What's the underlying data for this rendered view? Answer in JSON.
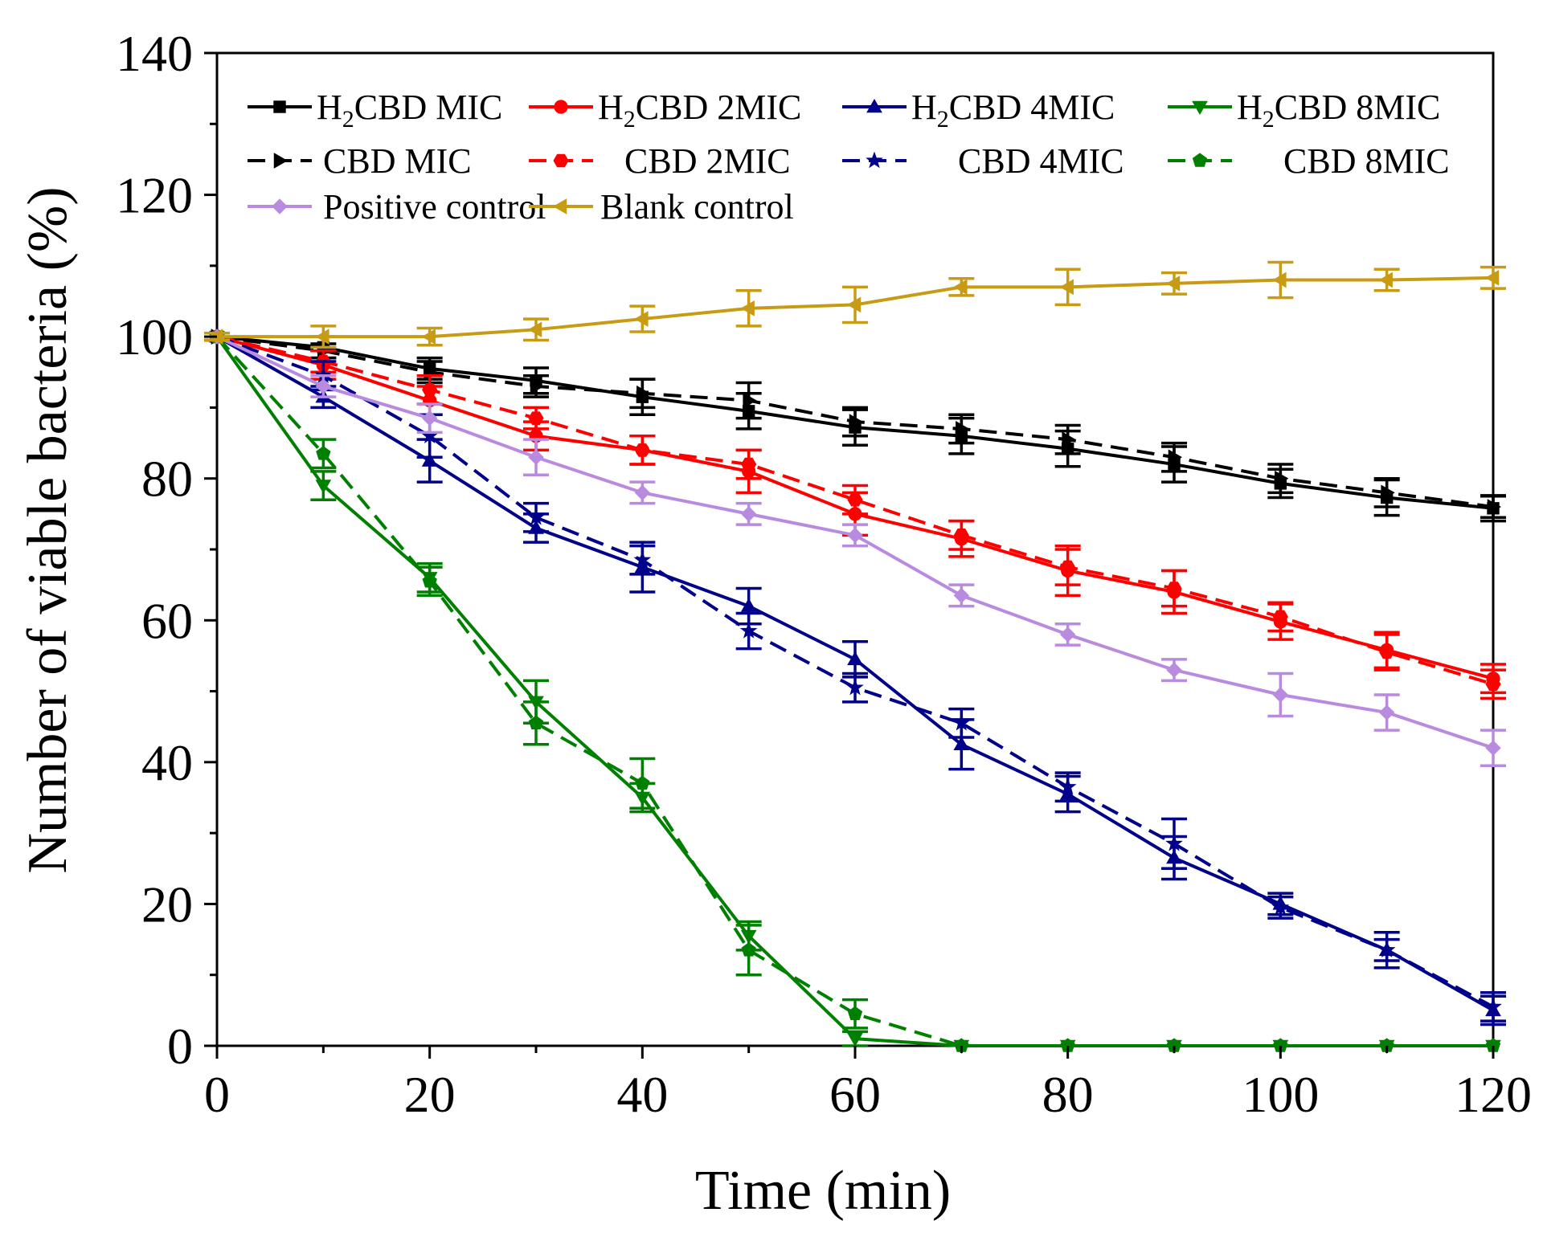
{
  "chart_data": {
    "type": "line",
    "xlabel": "Time (min)",
    "ylabel": "Number of viable bacteria (%)",
    "xlim": [
      0,
      120
    ],
    "ylim": [
      0,
      140
    ],
    "xticks": [
      0,
      20,
      40,
      60,
      80,
      100,
      120
    ],
    "yticks": [
      0,
      20,
      40,
      60,
      80,
      100,
      120,
      140
    ],
    "grid": false,
    "legend_position": "top",
    "x": [
      0,
      10,
      20,
      30,
      40,
      50,
      60,
      70,
      80,
      90,
      100,
      110,
      120
    ],
    "series": [
      {
        "name": "H2CBD MIC",
        "label_prefix": "H",
        "label_sub": "2",
        "label_suffix": "CBD MIC",
        "color": "#000000",
        "dash": "solid",
        "marker": "square",
        "values": [
          100,
          98.5,
          95.5,
          93.8,
          91.5,
          89.5,
          87.2,
          86.0,
          84.2,
          82.0,
          79.3,
          77.3,
          75.8
        ],
        "errors": [
          0.5,
          1.5,
          1.5,
          1.8,
          2.5,
          2.5,
          2.5,
          2.5,
          2.5,
          2.5,
          2.0,
          2.5,
          1.8
        ]
      },
      {
        "name": "H2CBD 2MIC",
        "label_prefix": "H",
        "label_sub": "2",
        "label_suffix": "CBD 2MIC",
        "color": "#ff0000",
        "dash": "solid",
        "marker": "circle",
        "values": [
          100,
          96.0,
          91.0,
          86.0,
          84.0,
          81.0,
          75.0,
          71.5,
          67.0,
          64.0,
          59.8,
          55.8,
          51.8
        ],
        "errors": [
          0.5,
          2.0,
          2.0,
          2.0,
          2.0,
          3.0,
          3.0,
          2.5,
          3.5,
          3.0,
          2.5,
          2.5,
          2.0
        ]
      },
      {
        "name": "H2CBD 4MIC",
        "label_prefix": "H",
        "label_sub": "2",
        "label_suffix": "CBD 4MIC",
        "color": "#00008b",
        "dash": "solid",
        "marker": "triangle-up",
        "values": [
          100,
          91.5,
          82.5,
          73.0,
          67.5,
          62.0,
          54.5,
          42.5,
          35.5,
          26.5,
          20.0,
          13.5,
          5.0
        ],
        "errors": [
          0.5,
          1.5,
          3.0,
          2.0,
          3.5,
          2.5,
          2.5,
          3.5,
          2.5,
          3.0,
          1.5,
          2.5,
          2.0
        ]
      },
      {
        "name": "H2CBD 8MIC",
        "label_prefix": "H",
        "label_sub": "2",
        "label_suffix": "CBD 8MIC",
        "color": "#008000",
        "dash": "solid",
        "marker": "triangle-down",
        "values": [
          100,
          79.0,
          66.0,
          48.5,
          35.0,
          15.5,
          1.0,
          0,
          0,
          0,
          0,
          0,
          0
        ],
        "errors": [
          0.5,
          2.0,
          2.0,
          3.0,
          2.0,
          2.0,
          1.0,
          0,
          0,
          0,
          0,
          0,
          0
        ]
      },
      {
        "name": "CBD MIC",
        "label_prefix": "",
        "label_sub": "",
        "label_suffix": "CBD MIC",
        "color": "#000000",
        "dash": "dashed",
        "marker": "triangle-right",
        "values": [
          100,
          98.0,
          95.0,
          93.0,
          92.0,
          91.0,
          88.0,
          87.0,
          85.5,
          83.0,
          80.0,
          78.0,
          76.0
        ],
        "errors": [
          0.5,
          1.0,
          1.5,
          1.5,
          2.0,
          2.5,
          2.0,
          2.0,
          2.0,
          2.0,
          2.0,
          2.0,
          1.5
        ]
      },
      {
        "name": "CBD 2MIC",
        "label_prefix": "",
        "label_sub": "",
        "label_suffix": "CBD 2MIC",
        "color": "#ff0000",
        "dash": "dashed",
        "marker": "hexagon",
        "values": [
          100,
          96.5,
          92.5,
          88.5,
          84.0,
          82.0,
          77.0,
          72.0,
          67.5,
          64.5,
          60.5,
          55.5,
          51.0
        ],
        "errors": [
          0.5,
          1.5,
          2.0,
          1.5,
          2.0,
          2.0,
          2.0,
          2.0,
          2.5,
          2.5,
          2.0,
          2.5,
          2.0
        ]
      },
      {
        "name": "CBD 4MIC",
        "label_prefix": "",
        "label_sub": "",
        "label_suffix": "CBD 4MIC",
        "color": "#00008b",
        "dash": "dashed",
        "marker": "star",
        "values": [
          100,
          94.5,
          86.0,
          74.5,
          68.5,
          58.5,
          50.5,
          45.5,
          36.5,
          28.5,
          19.5,
          13.5,
          5.5
        ],
        "errors": [
          0.5,
          2.0,
          3.0,
          2.0,
          2.0,
          2.5,
          2.0,
          2.0,
          2.0,
          3.5,
          1.5,
          1.5,
          2.0
        ]
      },
      {
        "name": "CBD 8MIC",
        "label_prefix": "",
        "label_sub": "",
        "label_suffix": "CBD 8MIC",
        "color": "#008000",
        "dash": "dashed",
        "marker": "pentagon",
        "values": [
          100,
          83.5,
          65.5,
          45.5,
          37.0,
          13.5,
          4.5,
          0,
          0,
          0,
          0,
          0,
          0
        ],
        "errors": [
          0.5,
          2.0,
          2.0,
          3.0,
          3.5,
          3.5,
          2.0,
          0,
          0,
          0,
          0,
          0,
          0
        ]
      },
      {
        "name": "Positive control",
        "label_prefix": "",
        "label_sub": "",
        "label_suffix": "Positive control",
        "color": "#b88be0",
        "dash": "solid",
        "marker": "diamond",
        "values": [
          100,
          93.0,
          88.5,
          83.0,
          78.0,
          75.0,
          72.0,
          63.5,
          58.0,
          53.0,
          49.5,
          47.0,
          42.0
        ],
        "errors": [
          0.5,
          1.5,
          2.0,
          2.5,
          1.5,
          1.5,
          1.5,
          1.5,
          1.5,
          1.5,
          3.0,
          2.5,
          2.5
        ]
      },
      {
        "name": "Blank control",
        "label_prefix": "",
        "label_sub": "",
        "label_suffix": "Blank control",
        "color": "#c89b14",
        "dash": "solid",
        "marker": "triangle-left",
        "values": [
          100,
          100.0,
          100.0,
          101.0,
          102.5,
          104.0,
          104.5,
          107.0,
          107.0,
          107.5,
          108.0,
          108.0,
          108.3
        ],
        "errors": [
          0.5,
          1.5,
          1.2,
          1.5,
          1.8,
          2.5,
          2.5,
          1.2,
          2.5,
          1.5,
          2.5,
          1.5,
          1.5
        ]
      }
    ]
  }
}
